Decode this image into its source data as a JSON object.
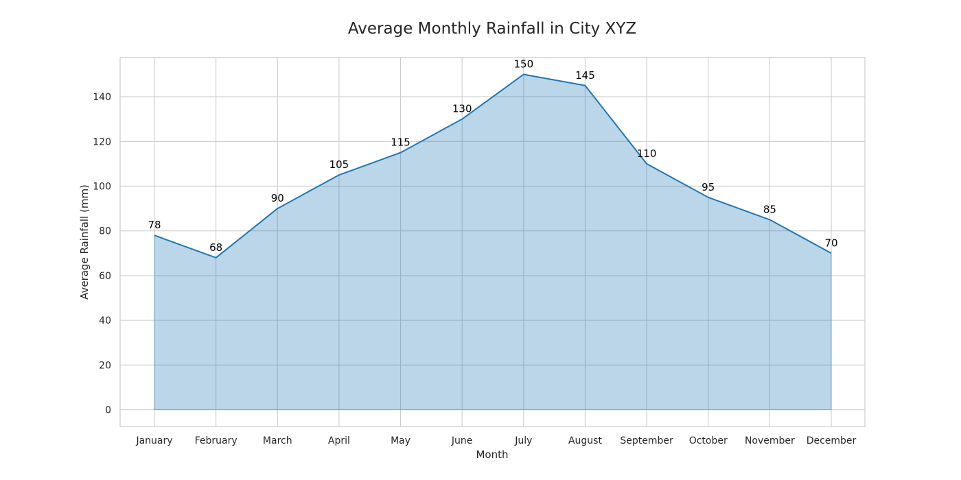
{
  "chart_data": {
    "type": "area",
    "title": "Average Monthly Rainfall in City XYZ",
    "xlabel": "Month",
    "ylabel": "Average Rainfall (mm)",
    "categories": [
      "January",
      "February",
      "March",
      "April",
      "May",
      "June",
      "July",
      "August",
      "September",
      "October",
      "November",
      "December"
    ],
    "values": [
      78,
      68,
      90,
      105,
      115,
      130,
      150,
      145,
      110,
      95,
      85,
      70
    ],
    "data_labels": [
      "78",
      "68",
      "90",
      "105",
      "115",
      "130",
      "150",
      "145",
      "110",
      "95",
      "85",
      "70"
    ],
    "yticks": [
      0,
      20,
      40,
      60,
      80,
      100,
      120,
      140
    ],
    "ylim": [
      -7.5,
      157.5
    ],
    "grid": true,
    "legend": "none",
    "colors": {
      "line": "#1f77b4",
      "fill": "#1f77b4",
      "grid": "#cccccc",
      "frame": "#cccccc"
    }
  }
}
